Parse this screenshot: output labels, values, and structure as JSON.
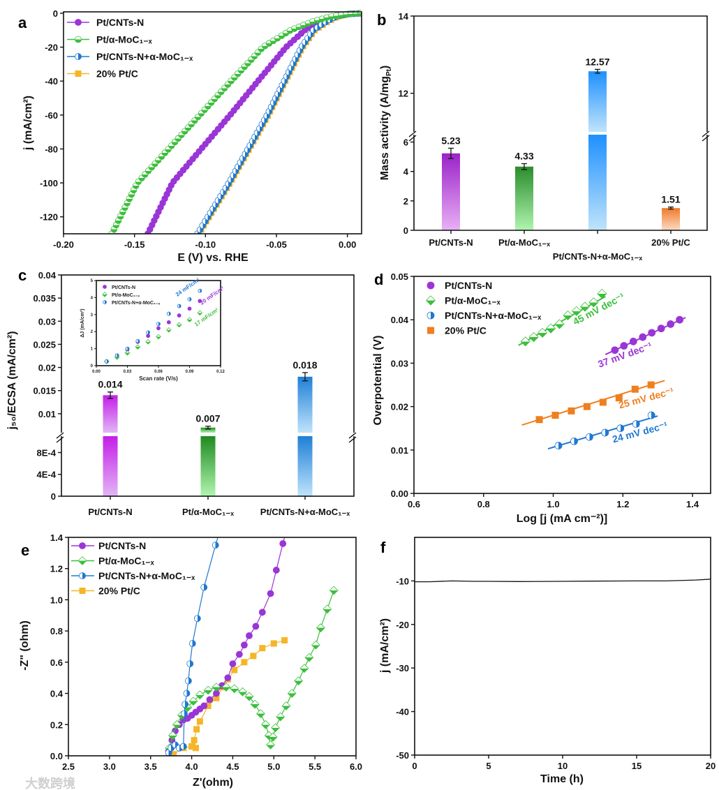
{
  "panels": [
    "a",
    "b",
    "c",
    "d",
    "e",
    "f"
  ],
  "watermark": "大数跨境",
  "colors": {
    "purple": "#9a35d6",
    "green": "#3cbf3c",
    "blue": "#1f78d1",
    "yellow": "#f5b525",
    "orange": "#f07f1d"
  },
  "chart_data": [
    {
      "type": "line",
      "title": "",
      "xlabel": "E (V) vs. RHE",
      "ylabel": "j (mA/cm²)",
      "xlim": [
        -0.2,
        0.01
      ],
      "ylim": [
        -130,
        0.8
      ],
      "xticklabels": [
        "-0.20",
        "-0.15",
        "-0.10",
        "-0.05",
        "0.00"
      ],
      "yticklabels": [
        "0",
        "-20",
        "-40",
        "-60",
        "-80",
        "-100",
        "-120"
      ],
      "legend": "top-left",
      "series": [
        {
          "name": "Pt/CNTs-N",
          "marker": "circle",
          "color": "#9a35d6",
          "x": [
            -0.1406,
            -0.1233,
            -0.103,
            -0.0826,
            -0.063,
            -0.0432,
            -0.03,
            -0.02,
            -0.01,
            0.0,
            0.01
          ],
          "y": [
            -130,
            -100,
            -80,
            -60,
            -40,
            -20,
            -10,
            -5,
            -2,
            -0.5,
            0
          ]
        },
        {
          "name": "Pt/α-MoC₁₋ₓ",
          "marker": "half-h",
          "color": "#3cbf3c",
          "x": [
            -0.166,
            -0.148,
            -0.126,
            -0.104,
            -0.082,
            -0.0595,
            -0.04,
            -0.025,
            -0.012,
            0.0,
            0.01
          ],
          "y": [
            -130,
            -100,
            -80,
            -60,
            -40,
            -20,
            -10,
            -5,
            -2,
            -0.5,
            0
          ]
        },
        {
          "name": "Pt/CNTs-N+α-MoC₁₋ₓ",
          "marker": "half",
          "color": "#1f78d1",
          "x": [
            -0.1056,
            -0.0835,
            -0.07,
            -0.0565,
            -0.0445,
            -0.0324,
            -0.024,
            -0.015,
            -0.008,
            0.0,
            0.01
          ],
          "y": [
            -130,
            -100,
            -80,
            -60,
            -40,
            -20,
            -10,
            -5,
            -2,
            -0.5,
            0
          ]
        },
        {
          "name": "20% Pt/C",
          "marker": "square",
          "color": "#f5b525",
          "x": [
            -0.1048,
            -0.0827,
            -0.0692,
            -0.0557,
            -0.0437,
            -0.0316,
            -0.023,
            -0.014,
            -0.007,
            0.001,
            0.01
          ],
          "y": [
            -130,
            -100,
            -80,
            -60,
            -40,
            -20,
            -10,
            -5,
            -2,
            -0.5,
            0
          ]
        }
      ]
    },
    {
      "type": "bar",
      "title": "",
      "xlabel": "",
      "ylabel": {
        "main": "Mass activity (A/mg",
        "sub": "Pt",
        "end": ")"
      },
      "ylim_lower": [
        0,
        6.5
      ],
      "ylim_upper": [
        11,
        14
      ],
      "yticklabels": [
        "0",
        "2",
        "4",
        "6",
        "12",
        "14"
      ],
      "categories": [
        "Pt/CNTs-N",
        "Pt/α-MoC₁₋ₓ",
        "Pt/CNTs-N+α-MoC₁₋ₓ",
        "20% Pt/C"
      ],
      "values": [
        5.23,
        4.33,
        12.57,
        1.51
      ],
      "value_labels": [
        "5.23",
        "4.33",
        "12.57",
        "1.51"
      ],
      "errors": [
        0.35,
        0.2,
        0.05,
        0.07
      ],
      "bar_colors": [
        [
          "#9a22c8",
          "#e9b0f5"
        ],
        [
          "#2a8c2a",
          "#b0f5b0"
        ],
        [
          "#1e90ff",
          "#c0e4fb"
        ],
        [
          "#f07a2a",
          "#fbdcc4"
        ]
      ]
    },
    {
      "type": "bar",
      "title": "",
      "xlabel": "",
      "ylabel": "j₅₀/ECSA (mA/cm²)",
      "ylim_lower": [
        0,
        0.0011
      ],
      "ylim_upper": [
        0.0059,
        0.04
      ],
      "yticklabels": [
        "0",
        "4E-4",
        "8E-4",
        "0.01",
        "0.015",
        "0.02",
        "0.025",
        "0.03",
        "0.035",
        "0.04"
      ],
      "categories": [
        "Pt/CNTs-N",
        "Pt/α-MoC₁₋ₓ",
        "Pt/CNTs-N+α-MoC₁₋ₓ"
      ],
      "values": [
        0.014,
        0.007,
        0.018
      ],
      "value_labels": [
        "0.014",
        "0.007",
        "0.018"
      ],
      "errors": [
        0.0007,
        0.0003,
        0.0009
      ],
      "bar_colors": [
        [
          "#c41ee8",
          "#e2b6f5"
        ],
        [
          "#1f8a1f",
          "#b0f5b0"
        ],
        [
          "#1e7fd6",
          "#c0e4fb"
        ]
      ]
    },
    {
      "type": "scatter",
      "title": "inset",
      "xlabel": "Scan rate (V/s)",
      "ylabel": "ΔJ (mA/cm²)",
      "xlim": [
        0,
        0.12
      ],
      "ylim": [
        0,
        5
      ],
      "xticklabels": [
        "0.00",
        "0.03",
        "0.06",
        "0.09",
        "0.12"
      ],
      "yticklabels": [
        "0",
        "1",
        "2",
        "3",
        "4",
        "5"
      ],
      "annotations": [
        {
          "text": "24 mF/cm²",
          "color": "#1f78d1"
        },
        {
          "text": "20 mF/cm²",
          "color": "#9a35d6"
        },
        {
          "text": "17 mF/cm²",
          "color": "#3cbf3c"
        }
      ],
      "series": [
        {
          "name": "Pt/CNTs-N",
          "marker": "circle",
          "color": "#9a35d6",
          "x": [
            0.01,
            0.02,
            0.03,
            0.04,
            0.05,
            0.06,
            0.07,
            0.08,
            0.09,
            0.1
          ],
          "y": [
            0.25,
            0.6,
            0.95,
            1.4,
            1.75,
            2.2,
            2.55,
            2.95,
            3.35,
            3.8
          ]
        },
        {
          "name": "Pt/α-MoC₁₋ₓ",
          "marker": "diamond",
          "color": "#3cbf3c",
          "x": [
            0.01,
            0.02,
            0.03,
            0.04,
            0.05,
            0.06,
            0.07,
            0.08,
            0.09,
            0.1
          ],
          "y": [
            0.25,
            0.5,
            0.75,
            1.1,
            1.4,
            1.7,
            2.1,
            2.4,
            2.7,
            3.1
          ]
        },
        {
          "name": "Pt/CNTs-N+α-MoC₁₋ₓ",
          "marker": "half",
          "color": "#1f78d1",
          "x": [
            0.01,
            0.02,
            0.03,
            0.04,
            0.05,
            0.06,
            0.07,
            0.08,
            0.09,
            0.1
          ],
          "y": [
            0.25,
            0.6,
            1.0,
            1.45,
            1.95,
            2.45,
            3.05,
            3.5,
            3.9,
            4.4
          ]
        }
      ]
    },
    {
      "type": "scatter",
      "title": "",
      "xlabel": "Log [j (mA cm⁻²)]",
      "ylabel": "Overpotential (V)",
      "xlim": [
        0.6,
        1.452
      ],
      "ylim": [
        0,
        0.05
      ],
      "xticklabels": [
        "0.6",
        "0.8",
        "1.0",
        "1.2",
        "1.4"
      ],
      "yticklabels": [
        "0.00",
        "0.01",
        "0.02",
        "0.03",
        "0.04",
        "0.05"
      ],
      "legend": "top-left",
      "series": [
        {
          "name": "Pt/CNTs-N",
          "marker": "circle",
          "color": "#9a35d6",
          "slope_label": "37 mV dec⁻¹",
          "fit": [
            1.15,
            1.38,
            0.033,
            1.177,
            0.037
          ],
          "x": [
            1.177,
            1.203,
            1.23,
            1.257,
            1.283,
            1.31,
            1.337,
            1.363
          ],
          "y": [
            0.033,
            0.034,
            0.035,
            0.036,
            0.037,
            0.038,
            0.039,
            0.04
          ]
        },
        {
          "name": "Pt/α-MoC₁₋ₓ",
          "marker": "diamond",
          "color": "#3cbf3c",
          "slope_label": "45 mV dec⁻¹",
          "fit": [
            0.9,
            1.15,
            0.035,
            0.92,
            0.045
          ],
          "x": [
            0.92,
            0.944,
            0.969,
            0.993,
            1.018,
            1.042,
            1.067,
            1.091,
            1.116,
            1.14
          ],
          "y": [
            0.035,
            0.036,
            0.037,
            0.038,
            0.039,
            0.041,
            0.042,
            0.043,
            0.044,
            0.046
          ]
        },
        {
          "name": "Pt/CNTs-N+α-MoC₁₋ₓ",
          "marker": "half",
          "color": "#1f78d1",
          "slope_label": "24 mV dec⁻¹",
          "fit": [
            0.985,
            1.3,
            0.011,
            1.015,
            0.024
          ],
          "x": [
            1.015,
            1.06,
            1.104,
            1.149,
            1.193,
            1.238,
            1.282
          ],
          "y": [
            0.011,
            0.012,
            0.013,
            0.014,
            0.015,
            0.016,
            0.018
          ]
        },
        {
          "name": "20% Pt/C",
          "marker": "square",
          "color": "#f07f1d",
          "slope_label": "25 mV dec⁻¹",
          "fit": [
            0.91,
            1.32,
            0.017,
            0.96,
            0.025
          ],
          "x": [
            0.96,
            1.006,
            1.052,
            1.097,
            1.143,
            1.189,
            1.235,
            1.281
          ],
          "y": [
            0.017,
            0.018,
            0.019,
            0.02,
            0.021,
            0.022,
            0.024,
            0.025
          ]
        }
      ]
    },
    {
      "type": "line",
      "title": "",
      "xlabel": "Z'(ohm)",
      "ylabel": "-Z\" (ohm)",
      "xlim": [
        2.5,
        6.0
      ],
      "ylim": [
        0,
        1.4
      ],
      "xticklabels": [
        "2.5",
        "3.0",
        "3.5",
        "4.0",
        "4.5",
        "5.0",
        "5.5",
        "6.0"
      ],
      "yticklabels": [
        "0.0",
        "0.2",
        "0.4",
        "0.6",
        "0.8",
        "1.0",
        "1.2",
        "1.4"
      ],
      "legend": "top-left",
      "series": [
        {
          "name": "Pt/CNTs-N",
          "marker": "circle",
          "color": "#9a35d6",
          "x": [
            3.72,
            3.76,
            3.8,
            3.85,
            3.9,
            3.95,
            4.0,
            4.05,
            4.1,
            4.15,
            4.22,
            4.3,
            4.37,
            4.44,
            4.5,
            4.58,
            4.64,
            4.7,
            4.78,
            4.86,
            4.96,
            5.03,
            5.11
          ],
          "y": [
            0.03,
            0.1,
            0.16,
            0.2,
            0.23,
            0.24,
            0.26,
            0.28,
            0.3,
            0.32,
            0.36,
            0.4,
            0.45,
            0.5,
            0.59,
            0.65,
            0.71,
            0.77,
            0.83,
            0.92,
            1.04,
            1.19,
            1.36
          ]
        },
        {
          "name": "Pt/α-MoC₁₋ₓ",
          "marker": "diamond",
          "color": "#3cbf3c",
          "x": [
            3.73,
            3.77,
            3.82,
            3.88,
            3.95,
            4.02,
            4.1,
            4.2,
            4.3,
            4.42,
            4.52,
            4.62,
            4.7,
            4.77,
            4.84,
            4.9,
            4.94,
            4.96,
            4.99,
            5.02,
            5.08,
            5.15,
            5.22,
            5.3,
            5.37,
            5.43,
            5.51,
            5.57,
            5.65,
            5.73
          ],
          "y": [
            0.05,
            0.13,
            0.2,
            0.26,
            0.31,
            0.35,
            0.39,
            0.42,
            0.44,
            0.44,
            0.43,
            0.41,
            0.38,
            0.33,
            0.27,
            0.2,
            0.13,
            0.07,
            0.12,
            0.18,
            0.25,
            0.32,
            0.4,
            0.48,
            0.56,
            0.63,
            0.71,
            0.82,
            0.94,
            1.06
          ]
        },
        {
          "name": "Pt/CNTs-N+α-MoC₁₋ₓ",
          "marker": "half",
          "color": "#1f78d1",
          "x": [
            3.72,
            3.75,
            3.8,
            3.85,
            3.9,
            3.91,
            3.92,
            3.94,
            3.96,
            3.98,
            4.01,
            4.07,
            4.15,
            4.29
          ],
          "y": [
            0.02,
            0.05,
            0.07,
            0.05,
            0.06,
            0.27,
            0.33,
            0.4,
            0.48,
            0.59,
            0.72,
            0.88,
            1.08,
            1.35
          ]
        },
        {
          "name": "20% Pt/C",
          "marker": "square",
          "color": "#f5b525",
          "x": [
            3.78,
            3.9,
            4.0,
            4.05,
            4.03,
            4.06,
            4.1,
            4.2,
            4.3,
            4.38,
            4.44,
            4.52,
            4.64,
            4.75,
            4.86,
            5.0,
            5.13
          ],
          "y": [
            0.01,
            0.05,
            0.06,
            0.05,
            0.1,
            0.17,
            0.22,
            0.32,
            0.37,
            0.44,
            0.49,
            0.55,
            0.6,
            0.64,
            0.69,
            0.72,
            0.74
          ]
        }
      ]
    },
    {
      "type": "line",
      "title": "",
      "xlabel": "Time (h)",
      "ylabel": "j (mA/cm²)",
      "xlim": [
        0,
        20
      ],
      "ylim": [
        -50,
        0
      ],
      "xticklabels": [
        "0",
        "5",
        "10",
        "15",
        "20"
      ],
      "yticklabels": [
        "-10",
        "-20",
        "-30",
        "-40",
        "-50"
      ],
      "series": [
        {
          "name": "stability",
          "color": "#111111",
          "x": [
            0,
            1,
            2.5,
            4,
            5,
            7,
            10,
            12,
            15,
            17,
            18,
            19,
            20
          ],
          "y": [
            -10.2,
            -10.2,
            -10.0,
            -10.1,
            -10.1,
            -10.15,
            -10.1,
            -10.05,
            -10.0,
            -10.0,
            -9.9,
            -9.8,
            -9.6
          ]
        }
      ]
    }
  ]
}
